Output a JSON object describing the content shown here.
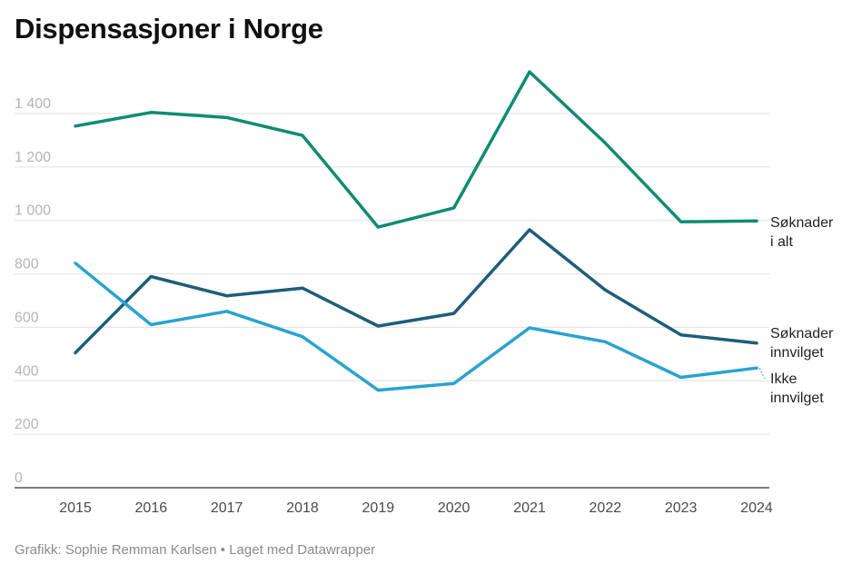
{
  "header": {
    "title": "Dispensasjoner i Norge"
  },
  "footer": {
    "credit": "Grafikk: Sophie Remman Karlsen",
    "separator": "•",
    "made_with": "Laget med Datawrapper"
  },
  "chart_data": {
    "type": "line",
    "title": "Dispensasjoner i Norge",
    "xlabel": "",
    "ylabel": "",
    "x": [
      "2015",
      "2016",
      "2017",
      "2018",
      "2019",
      "2020",
      "2021",
      "2022",
      "2023",
      "2024"
    ],
    "y_ticks": [
      {
        "value": 0,
        "label": "0"
      },
      {
        "value": 200,
        "label": "200"
      },
      {
        "value": 400,
        "label": "400"
      },
      {
        "value": 600,
        "label": "600"
      },
      {
        "value": 800,
        "label": "800"
      },
      {
        "value": 1000,
        "label": "1 000"
      },
      {
        "value": 1200,
        "label": "1 200"
      },
      {
        "value": 1400,
        "label": "1 400"
      }
    ],
    "ylim": [
      0,
      1400
    ],
    "grid": true,
    "legend": "direct labels at right end of lines",
    "series": [
      {
        "name": "Søknader i alt",
        "label_lines": [
          "Søknader",
          "i alt"
        ],
        "color": "#0f8c72",
        "values": [
          1353,
          1404,
          1385,
          1318,
          975,
          1047,
          1556,
          1290,
          995,
          998
        ]
      },
      {
        "name": "Søknader innvilget",
        "label_lines": [
          "Søknader",
          "innvilget"
        ],
        "color": "#1d5e7a",
        "values": [
          505,
          790,
          718,
          747,
          605,
          652,
          965,
          740,
          572,
          541
        ]
      },
      {
        "name": "Ikke innvilget",
        "label_lines": [
          "Ikke",
          "innvilget"
        ],
        "color": "#2aa3cf",
        "values": [
          840,
          610,
          660,
          565,
          365,
          390,
          598,
          546,
          413,
          448
        ]
      }
    ]
  }
}
